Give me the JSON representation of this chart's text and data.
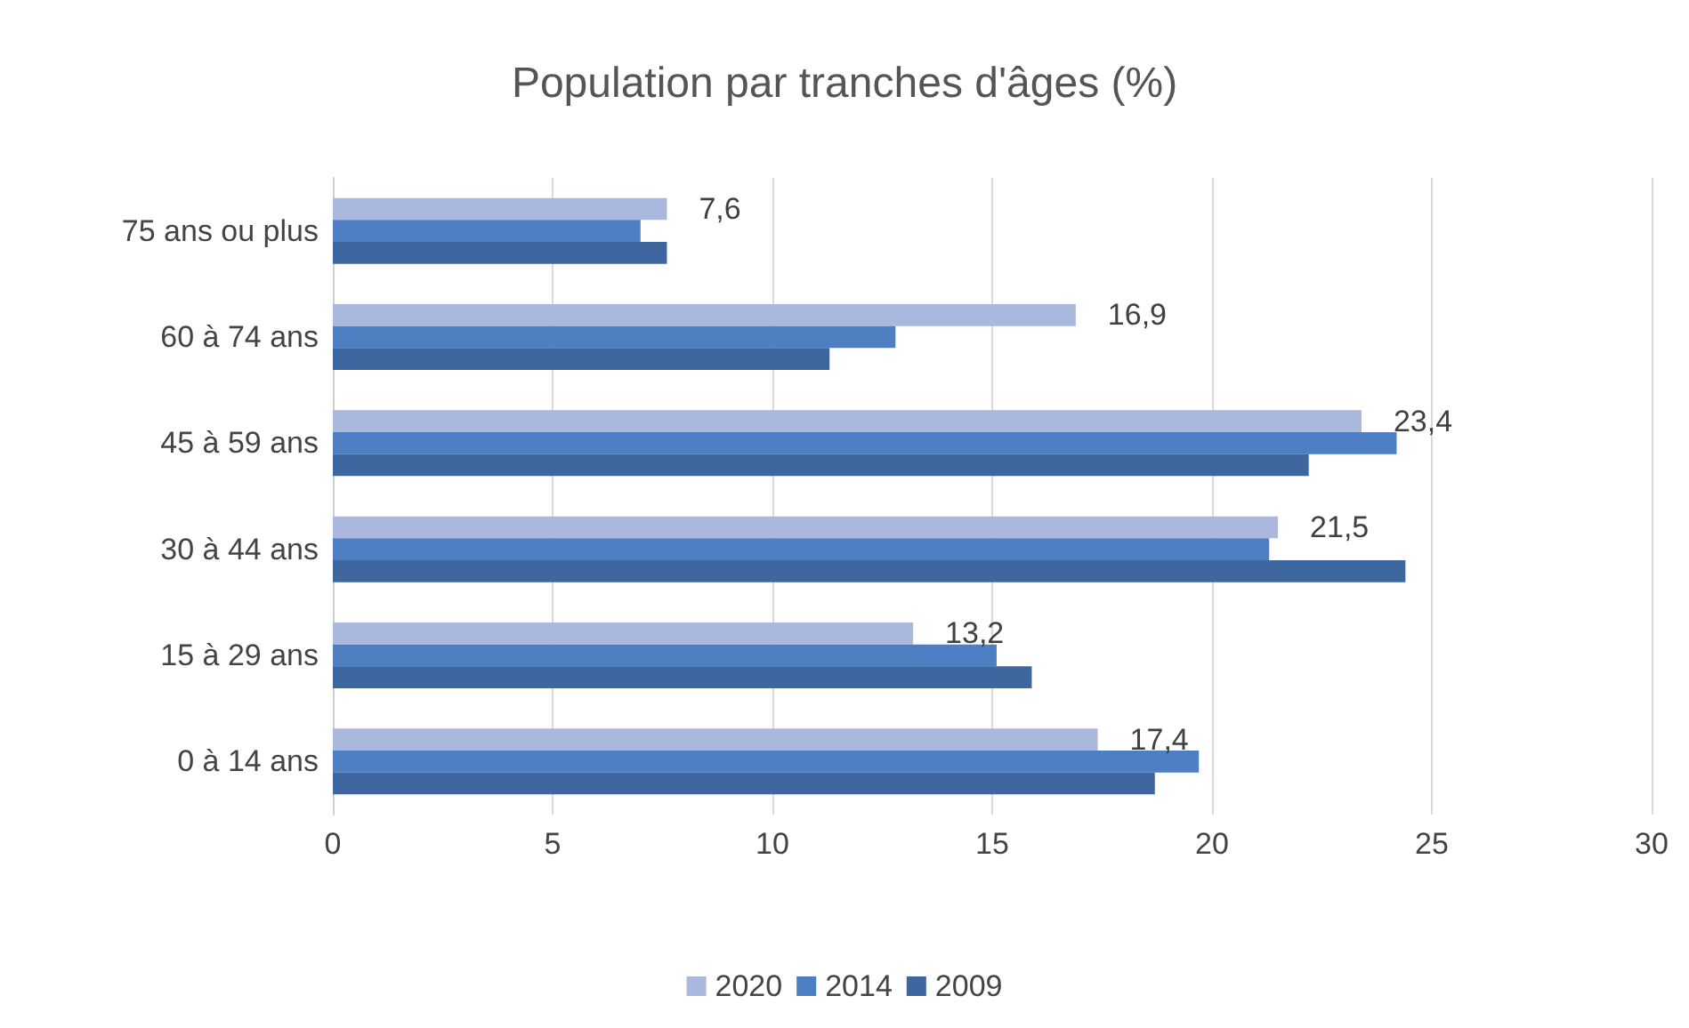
{
  "chart_data": {
    "type": "bar",
    "orientation": "horizontal",
    "title": "Population par tranches d'âges (%)",
    "categories": [
      "75 ans ou plus",
      "60 à 74 ans",
      "45 à 59 ans",
      "30 à 44 ans",
      "15 à 29 ans",
      "0 à 14 ans"
    ],
    "series": [
      {
        "name": "2020",
        "color": "#a9b8dc",
        "values": [
          7.6,
          16.9,
          23.4,
          21.5,
          13.2,
          17.4
        ],
        "value_labels": [
          "7,6",
          "16,9",
          "23,4",
          "21,5",
          "13,2",
          "17,4"
        ]
      },
      {
        "name": "2014",
        "color": "#4e7fc3",
        "values": [
          7.0,
          12.8,
          24.2,
          21.3,
          15.1,
          19.7
        ]
      },
      {
        "name": "2009",
        "color": "#3e679f",
        "values": [
          7.6,
          11.3,
          22.2,
          24.4,
          15.9,
          18.7
        ]
      }
    ],
    "xlim": [
      0,
      30
    ],
    "xticks": [
      0,
      5,
      10,
      15,
      20,
      25,
      30
    ],
    "grid": "x",
    "legend": "bottom"
  }
}
